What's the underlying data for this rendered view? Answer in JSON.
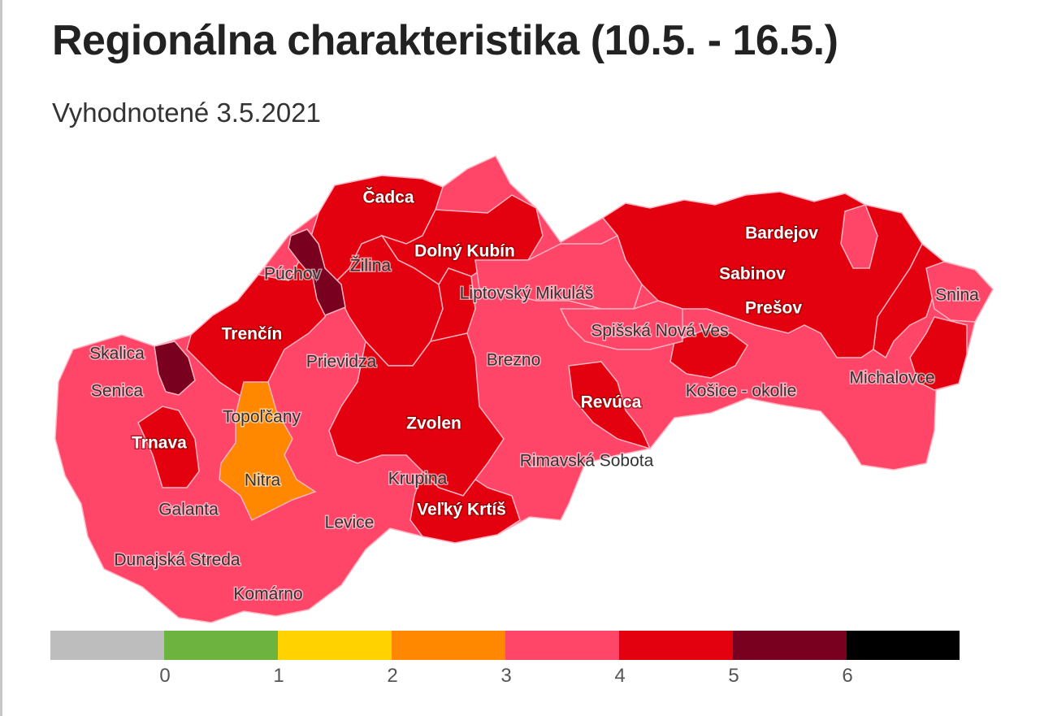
{
  "title": "Regionálna charakteristika (10.5. - 16.5.)",
  "subtitle": "Vyhodnotené 3.5.2021",
  "colors": {
    "level_0": "#bdbdbd",
    "level_1": "#6db33f",
    "level_2": "#ffd200",
    "level_3": "#ff8800",
    "level_4": "#ff4668",
    "level_5": "#e3000f",
    "level_6": "#7a0020",
    "level_7": "#000000",
    "border": "#ffb3c1"
  },
  "legend": {
    "swatch_colors": [
      "#bdbdbd",
      "#6db33f",
      "#ffd200",
      "#ff8800",
      "#ff4668",
      "#e3000f",
      "#7a0020",
      "#000000"
    ],
    "ticks": [
      "0",
      "1",
      "2",
      "3",
      "4",
      "5",
      "6"
    ]
  },
  "regions": [
    {
      "name": "Čadca",
      "label_style": "light"
    },
    {
      "name": "Dolný Kubín",
      "label_style": "light"
    },
    {
      "name": "Púchov",
      "label_style": "dark"
    },
    {
      "name": "Žilina",
      "label_style": "dark"
    },
    {
      "name": "Liptovský Mikuláš",
      "label_style": "dark"
    },
    {
      "name": "Bardejov",
      "label_style": "light"
    },
    {
      "name": "Sabinov",
      "label_style": "light"
    },
    {
      "name": "Prešov",
      "label_style": "light"
    },
    {
      "name": "Snina",
      "label_style": "dark"
    },
    {
      "name": "Spišská Nová Ves",
      "label_style": "dark"
    },
    {
      "name": "Skalica",
      "label_style": "dark"
    },
    {
      "name": "Trenčín",
      "label_style": "light"
    },
    {
      "name": "Prievidza",
      "label_style": "dark"
    },
    {
      "name": "Brezno",
      "label_style": "dark"
    },
    {
      "name": "Michalovce",
      "label_style": "dark"
    },
    {
      "name": "Senica",
      "label_style": "dark"
    },
    {
      "name": "Košice - okolie",
      "label_style": "dark"
    },
    {
      "name": "Revúca",
      "label_style": "light"
    },
    {
      "name": "Topoľčany",
      "label_style": "dark"
    },
    {
      "name": "Zvolen",
      "label_style": "light"
    },
    {
      "name": "Trnava",
      "label_style": "light"
    },
    {
      "name": "Rimavská Sobota",
      "label_style": "dark"
    },
    {
      "name": "Krupina",
      "label_style": "dark"
    },
    {
      "name": "Nitra",
      "label_style": "dark"
    },
    {
      "name": "Galanta",
      "label_style": "dark"
    },
    {
      "name": "Veľký Krtíš",
      "label_style": "light"
    },
    {
      "name": "Levice",
      "label_style": "dark"
    },
    {
      "name": "Dunajská Streda",
      "label_style": "dark"
    },
    {
      "name": "Komárno",
      "label_style": "dark"
    }
  ]
}
